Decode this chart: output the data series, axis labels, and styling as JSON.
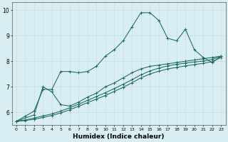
{
  "xlabel": "Humidex (Indice chaleur)",
  "bg_color": "#d8eef3",
  "line_color": "#1a6b5e",
  "grid_color": "#c8dde3",
  "xlim": [
    -0.5,
    23.5
  ],
  "ylim": [
    5.5,
    10.3
  ],
  "yticks": [
    6,
    7,
    8,
    9,
    10
  ],
  "xticks": [
    0,
    1,
    2,
    3,
    4,
    5,
    6,
    7,
    8,
    9,
    10,
    11,
    12,
    13,
    14,
    15,
    16,
    17,
    18,
    19,
    20,
    21,
    22,
    23
  ],
  "series": [
    {
      "x": [
        0,
        1,
        2,
        3,
        4,
        5,
        6,
        7,
        8,
        9,
        10,
        11,
        12,
        13,
        14,
        15,
        16,
        17,
        18,
        19,
        20,
        21,
        22,
        23
      ],
      "y": [
        5.65,
        5.85,
        6.05,
        6.9,
        6.9,
        7.6,
        7.6,
        7.55,
        7.6,
        7.8,
        8.2,
        8.45,
        8.8,
        9.35,
        9.9,
        9.9,
        9.6,
        8.9,
        8.8,
        9.25,
        8.45,
        8.15,
        7.95,
        8.2
      ]
    },
    {
      "x": [
        0,
        2,
        3,
        4,
        5,
        6,
        7,
        8,
        9,
        10,
        11,
        12,
        13,
        14,
        15,
        16,
        17,
        18,
        19,
        20,
        21,
        22,
        23
      ],
      "y": [
        5.65,
        5.9,
        7.0,
        6.8,
        6.3,
        6.25,
        6.4,
        6.6,
        6.75,
        7.0,
        7.15,
        7.35,
        7.55,
        7.7,
        7.8,
        7.85,
        7.9,
        7.95,
        8.0,
        8.05,
        8.1,
        8.15,
        8.2
      ]
    },
    {
      "x": [
        0,
        1,
        2,
        3,
        4,
        5,
        6,
        7,
        8,
        9,
        10,
        11,
        12,
        13,
        14,
        15,
        16,
        17,
        18,
        19,
        20,
        21,
        22,
        23
      ],
      "y": [
        5.65,
        5.7,
        5.78,
        5.86,
        5.94,
        6.05,
        6.18,
        6.32,
        6.47,
        6.62,
        6.77,
        6.93,
        7.1,
        7.28,
        7.47,
        7.62,
        7.73,
        7.82,
        7.88,
        7.93,
        7.97,
        8.01,
        8.07,
        8.2
      ]
    },
    {
      "x": [
        0,
        1,
        2,
        3,
        4,
        5,
        6,
        7,
        8,
        9,
        10,
        11,
        12,
        13,
        14,
        15,
        16,
        17,
        18,
        19,
        20,
        21,
        22,
        23
      ],
      "y": [
        5.65,
        5.68,
        5.73,
        5.8,
        5.88,
        5.98,
        6.1,
        6.24,
        6.38,
        6.52,
        6.66,
        6.82,
        6.98,
        7.16,
        7.35,
        7.5,
        7.61,
        7.7,
        7.76,
        7.82,
        7.87,
        7.92,
        7.98,
        8.15
      ]
    }
  ]
}
